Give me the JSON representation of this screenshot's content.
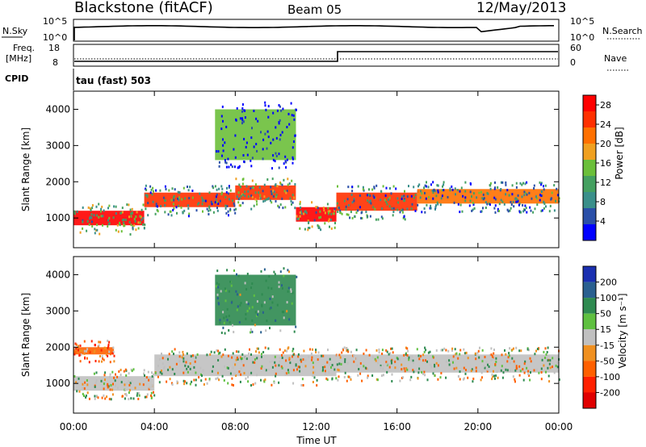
{
  "header": {
    "station": "Blackstone (fitACF)",
    "beam": "Beam 05",
    "date": "12/May/2013"
  },
  "top_panels": {
    "nsky_label": "N.Sky",
    "nsearch_label": "N.Search",
    "left_ticks": [
      "10^5",
      "10^0"
    ],
    "right_ticks": [
      "10^5",
      "10^0"
    ],
    "freq_label_1": "Freq.",
    "freq_label_2": "[MHz]",
    "freq_ticks": [
      "18",
      "8"
    ],
    "nave_label": "Nave",
    "nave_ticks": [
      "60",
      "0"
    ],
    "cpid_label": "CPID",
    "cpid_value": "tau (fast) 503"
  },
  "chart_data": [
    {
      "type": "heatmap",
      "title": "",
      "xlabel": "",
      "ylabel": "Slant Range [km]",
      "x_ticks": [
        "00:00",
        "04:00",
        "08:00",
        "12:00",
        "16:00",
        "20:00",
        "00:00"
      ],
      "xlim_hours": [
        0,
        24
      ],
      "y_ticks": [
        1000,
        2000,
        3000,
        4000
      ],
      "ylim": [
        180,
        4500
      ],
      "colorbar_label": "Power [dB]",
      "colorbar_ticks": [
        4,
        8,
        12,
        16,
        20,
        24,
        28
      ],
      "colorbar_range": [
        0,
        30
      ],
      "colorbar_colors": [
        "#0000ff",
        "#2a4fa8",
        "#3a8f8a",
        "#44a060",
        "#6bbf3a",
        "#f0a020",
        "#ff7000",
        "#ff3000",
        "#ff0000"
      ],
      "features": [
        {
          "start_h": 0.0,
          "end_h": 3.5,
          "range_start_km": 800,
          "range_end_km": 1200,
          "value": 28
        },
        {
          "start_h": 3.5,
          "end_h": 8.0,
          "range_start_km": 1300,
          "range_end_km": 1700,
          "value": 24
        },
        {
          "start_h": 8.0,
          "end_h": 11.0,
          "range_start_km": 1500,
          "range_end_km": 1900,
          "value": 26
        },
        {
          "start_h": 11.0,
          "end_h": 13.0,
          "range_start_km": 900,
          "range_end_km": 1300,
          "value": 28
        },
        {
          "start_h": 13.0,
          "end_h": 17.0,
          "range_start_km": 1200,
          "range_end_km": 1700,
          "value": 24
        },
        {
          "start_h": 17.0,
          "end_h": 24.0,
          "range_start_km": 1400,
          "range_end_km": 1800,
          "value": 22
        },
        {
          "start_h": 7.0,
          "end_h": 11.0,
          "range_start_km": 2600,
          "range_end_km": 4000,
          "value": 14
        }
      ]
    },
    {
      "type": "heatmap",
      "title": "",
      "xlabel": "Time UT",
      "ylabel": "Slant Range [km]",
      "x_ticks": [
        "00:00",
        "04:00",
        "08:00",
        "12:00",
        "16:00",
        "20:00",
        "00:00"
      ],
      "xlim_hours": [
        0,
        24
      ],
      "y_ticks": [
        1000,
        2000,
        3000,
        4000
      ],
      "ylim": [
        180,
        4500
      ],
      "colorbar_label": "Velocity [m s⁻¹]",
      "colorbar_ticks": [
        200,
        100,
        50,
        15,
        -15,
        -50,
        -100,
        -200
      ],
      "colorbar_colors": [
        "#1a2fb0",
        "#2a6090",
        "#2e8a50",
        "#5fc040",
        "#c0c0c0",
        "#f09020",
        "#ff6000",
        "#ff2000",
        "#e00000"
      ],
      "features": [
        {
          "start_h": 0.0,
          "end_h": 4.0,
          "range_start_km": 800,
          "range_end_km": 1200,
          "value": 0
        },
        {
          "start_h": 4.0,
          "end_h": 13.0,
          "range_start_km": 1200,
          "range_end_km": 1800,
          "value": 0
        },
        {
          "start_h": 13.0,
          "end_h": 24.0,
          "range_start_km": 1300,
          "range_end_km": 1800,
          "value": 0
        },
        {
          "start_h": 7.0,
          "end_h": 11.0,
          "range_start_km": 2600,
          "range_end_km": 4000,
          "value": 40
        },
        {
          "start_h": 0.0,
          "end_h": 2.0,
          "range_start_km": 1800,
          "range_end_km": 2000,
          "value": -50
        }
      ]
    }
  ]
}
